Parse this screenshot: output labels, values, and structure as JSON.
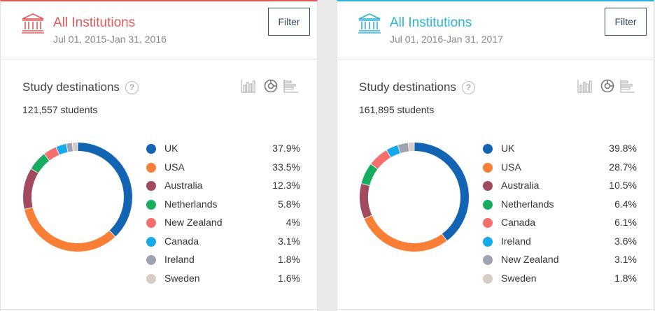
{
  "panels": [
    {
      "title": "All Institutions",
      "date_range": "Jul 01, 2015-Jan 31, 2016",
      "filter_label": "Filter",
      "accent": "#e05a5a",
      "section_title": "Study destinations",
      "help_label": "?",
      "students": "121,557 students",
      "chart_data": {
        "type": "pie",
        "style": "donut",
        "categories": [
          "UK",
          "USA",
          "Australia",
          "Netherlands",
          "New Zealand",
          "Canada",
          "Ireland",
          "Sweden"
        ],
        "values": [
          37.9,
          33.5,
          12.3,
          5.8,
          4,
          3.1,
          1.8,
          1.6
        ],
        "value_labels": [
          "37.9%",
          "33.5%",
          "12.3%",
          "5.8%",
          "4%",
          "3.1%",
          "1.8%",
          "1.6%"
        ],
        "colors": [
          "#1464b4",
          "#f97e36",
          "#a24b5e",
          "#16ad61",
          "#f66f6f",
          "#15abeb",
          "#9ea4b2",
          "#d6cdc6"
        ],
        "legend": "right"
      }
    },
    {
      "title": "All Institutions",
      "date_range": "Jul 01, 2016-Jan 31, 2017",
      "filter_label": "Filter",
      "accent": "#2bb3d8",
      "section_title": "Study destinations",
      "help_label": "?",
      "students": "161,895 students",
      "chart_data": {
        "type": "pie",
        "style": "donut",
        "categories": [
          "UK",
          "USA",
          "Australia",
          "Netherlands",
          "Canada",
          "Ireland",
          "New Zealand",
          "Sweden"
        ],
        "values": [
          39.8,
          28.7,
          10.5,
          6.4,
          6.1,
          3.6,
          3.1,
          1.8
        ],
        "value_labels": [
          "39.8%",
          "28.7%",
          "10.5%",
          "6.4%",
          "6.1%",
          "3.6%",
          "3.1%",
          "1.8%"
        ],
        "colors": [
          "#1464b4",
          "#f97e36",
          "#a24b5e",
          "#16ad61",
          "#f66f6f",
          "#15abeb",
          "#9ea4b2",
          "#d6cdc6"
        ],
        "legend": "right"
      }
    }
  ],
  "icons": {
    "institution": "institution-icon",
    "help": "help-icon",
    "bar_chart": "bar-chart-icon",
    "donut_chart": "donut-chart-icon",
    "horizontal_bar_chart": "horizontal-bar-chart-icon"
  }
}
